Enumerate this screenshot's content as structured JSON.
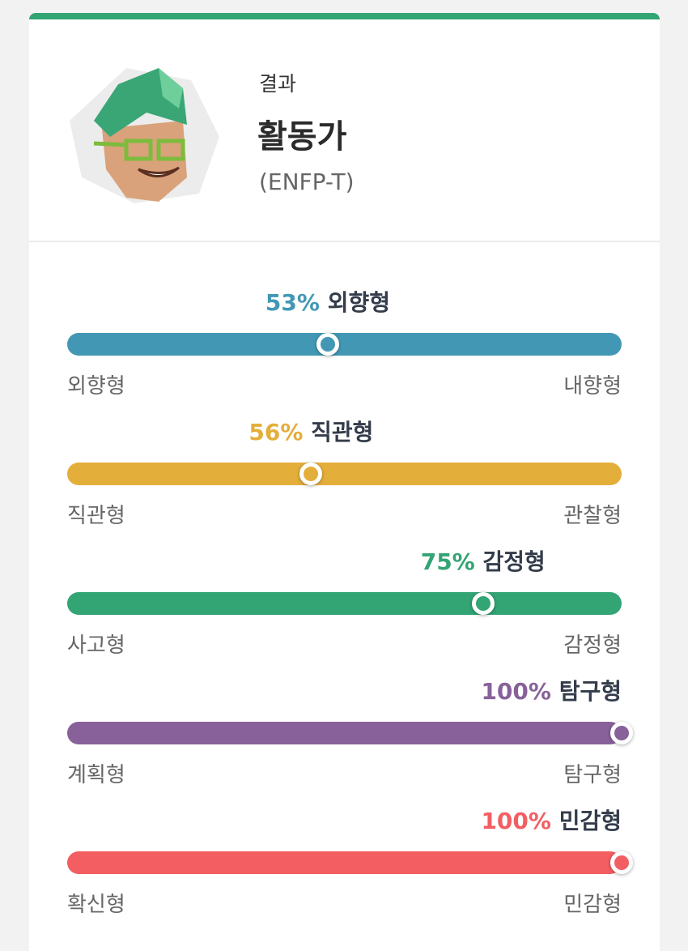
{
  "header": {
    "label": "결과",
    "title": "활동가",
    "code": "(ENFP-T)"
  },
  "traits": [
    {
      "percent": 53,
      "percent_label": "53%",
      "trait": "외향형",
      "left": "외향형",
      "right": "내향형",
      "color": "#4298b4"
    },
    {
      "percent": 56,
      "percent_label": "56%",
      "trait": "직관형",
      "left": "직관형",
      "right": "관찰형",
      "color": "#e4ae3a"
    },
    {
      "percent": 75,
      "percent_label": "75%",
      "trait": "감정형",
      "left": "사고형",
      "right": "감정형",
      "color": "#33a474"
    },
    {
      "percent": 100,
      "percent_label": "100%",
      "trait": "탐구형",
      "left": "계획형",
      "right": "탐구형",
      "color": "#88619a"
    },
    {
      "percent": 100,
      "percent_label": "100%",
      "trait": "민감형",
      "left": "확신형",
      "right": "민감형",
      "color": "#f25e62"
    }
  ]
}
